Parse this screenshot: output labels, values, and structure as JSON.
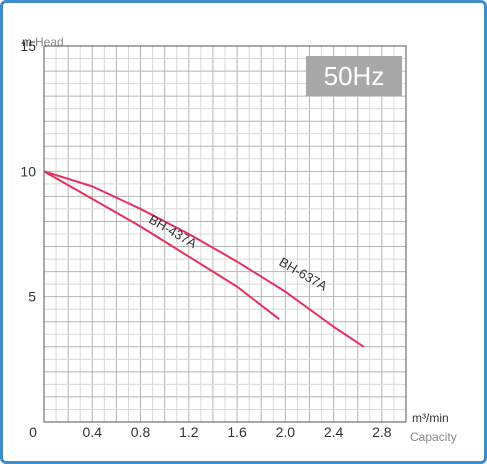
{
  "chart_data": {
    "type": "line",
    "badge": "50Hz",
    "xlabel_unit": "m³/min",
    "xlabel": "Capacity",
    "ylabel_unit": "m",
    "ylabel": "Head",
    "xlim": [
      0,
      3.0
    ],
    "ylim": [
      0,
      15
    ],
    "x_ticks": [
      "0.4",
      "0.8",
      "1.2",
      "1.6",
      "2.0",
      "2.4",
      "2.8"
    ],
    "x_tick_values": [
      0.4,
      0.8,
      1.2,
      1.6,
      2.0,
      2.4,
      2.8
    ],
    "x_origin_label": "0",
    "y_ticks": [
      "5",
      "10",
      "15"
    ],
    "y_tick_values": [
      5,
      10,
      15
    ],
    "grid": true,
    "curve_color": "#e4315f",
    "series": [
      {
        "name": "BH-437A",
        "x": [
          0,
          0.4,
          0.8,
          1.2,
          1.6,
          1.95
        ],
        "y": [
          10,
          8.9,
          7.8,
          6.6,
          5.4,
          4.1
        ]
      },
      {
        "name": "BH-637A",
        "x": [
          0,
          0.4,
          0.8,
          1.2,
          1.6,
          2.0,
          2.4,
          2.65
        ],
        "y": [
          10,
          9.4,
          8.5,
          7.5,
          6.4,
          5.2,
          3.8,
          3.0
        ]
      }
    ]
  }
}
